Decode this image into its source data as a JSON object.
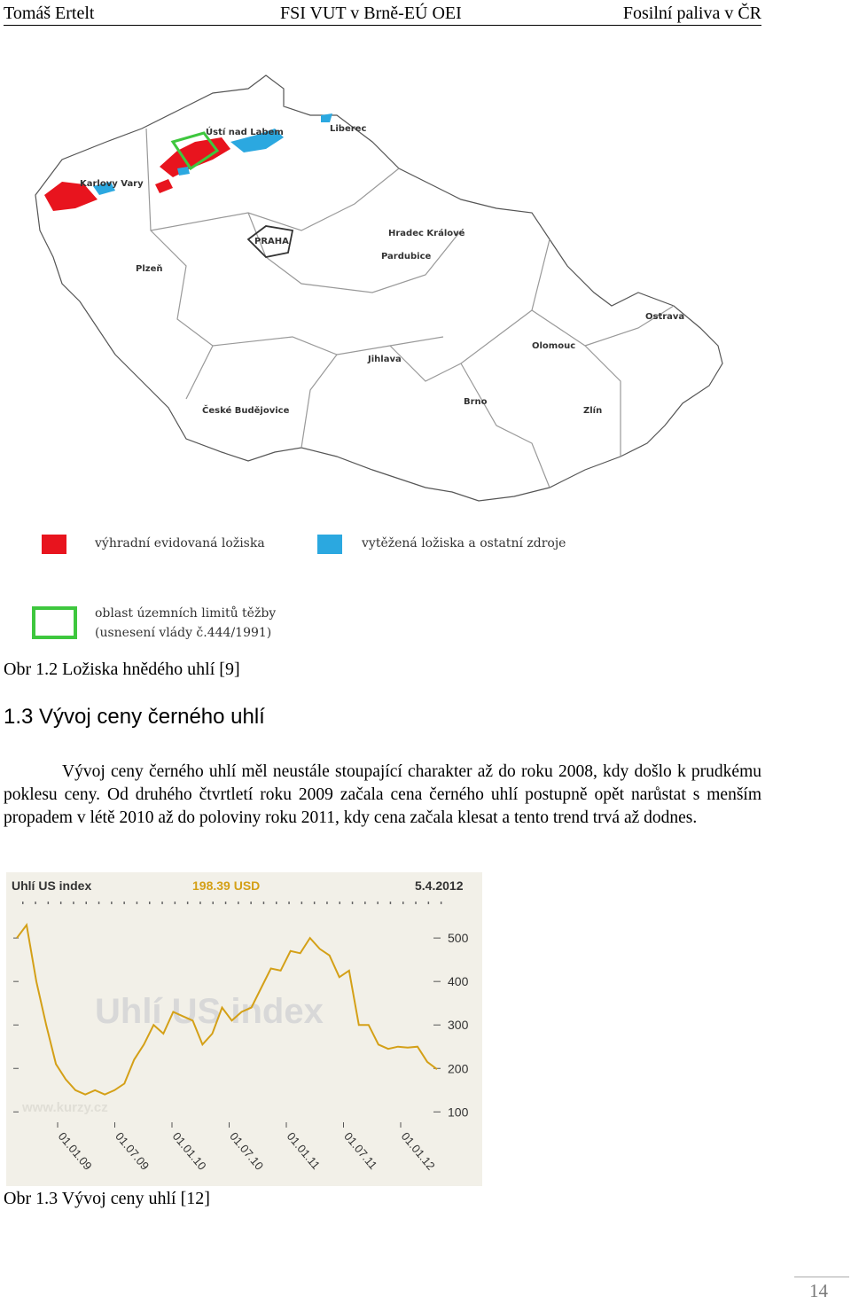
{
  "header": {
    "author": "Tomáš Ertelt",
    "institution": "FSI VUT v Brně-EÚ OEI",
    "topic": "Fosilní paliva v ČR"
  },
  "map": {
    "cities": [
      "Ústí nad Labem",
      "Liberec",
      "Karlovy Vary",
      "PRAHA",
      "Hradec Králové",
      "Pardubice",
      "Plzeň",
      "Ostrava",
      "Olomouc",
      "Jihlava",
      "Brno",
      "České Budějovice",
      "Zlín"
    ],
    "legend": {
      "red_label": "výhradní evidovaná ložiska",
      "blue_label": "vytěžená ložiska a ostatní zdroje",
      "green_label_1": "oblast územních limitů těžby",
      "green_label_2": "(usnesení vlády č.444/1991)"
    },
    "colors": {
      "red": "#e8141e",
      "blue": "#2ba8e0",
      "green": "#3ec73e"
    }
  },
  "figure1_caption": "Obr 1.2 Ložiska hnědého uhlí [9]",
  "section_heading": "1.3 Vývoj ceny černého uhlí",
  "paragraph": "Vývoj ceny černého uhlí měl neustále stoupající charakter až do roku 2008, kdy došlo k prudkému poklesu ceny. Od druhého čtvrtletí roku 2009 začala cena černého uhlí postupně opět narůstat s menším propadem v létě 2010 až do poloviny roku 2011, kdy cena začala klesat a tento trend trvá až dodnes.",
  "chart_data": {
    "type": "line",
    "title": "Uhlí US index",
    "current_value": "198.39 USD",
    "date": "5.4.2012",
    "watermark": "Uhlí US index",
    "watermark_url": "www.kurzy.cz",
    "x_ticks": [
      "01.01.09",
      "01.07.09",
      "01.01.10",
      "01.07.10",
      "01.01.11",
      "01.07.11",
      "01.01.12"
    ],
    "y_ticks": [
      100,
      200,
      300,
      400,
      500
    ],
    "ylim": [
      70,
      590
    ],
    "x": [
      "2008-09",
      "2008-10",
      "2008-11",
      "2008-12",
      "2009-01",
      "2009-02",
      "2009-03",
      "2009-04",
      "2009-05",
      "2009-06",
      "2009-07",
      "2009-08",
      "2009-09",
      "2009-10",
      "2009-11",
      "2009-12",
      "2010-01",
      "2010-02",
      "2010-03",
      "2010-04",
      "2010-05",
      "2010-06",
      "2010-07",
      "2010-08",
      "2010-09",
      "2010-10",
      "2010-11",
      "2010-12",
      "2011-01",
      "2011-02",
      "2011-03",
      "2011-04",
      "2011-05",
      "2011-06",
      "2011-07",
      "2011-08",
      "2011-09",
      "2011-10",
      "2011-11",
      "2011-12",
      "2012-01",
      "2012-02",
      "2012-03",
      "2012-04"
    ],
    "values": [
      500,
      530,
      400,
      300,
      210,
      175,
      150,
      140,
      150,
      140,
      150,
      165,
      220,
      255,
      300,
      280,
      330,
      320,
      310,
      255,
      280,
      340,
      310,
      330,
      340,
      385,
      430,
      425,
      470,
      465,
      500,
      475,
      460,
      410,
      425,
      300,
      300,
      255,
      245,
      250,
      248,
      250,
      215,
      198
    ],
    "line_color": "#d4a017",
    "background": "#f2f0e8"
  },
  "figure2_caption": "Obr 1.3 Vývoj ceny uhlí [12]",
  "page_number": "14"
}
